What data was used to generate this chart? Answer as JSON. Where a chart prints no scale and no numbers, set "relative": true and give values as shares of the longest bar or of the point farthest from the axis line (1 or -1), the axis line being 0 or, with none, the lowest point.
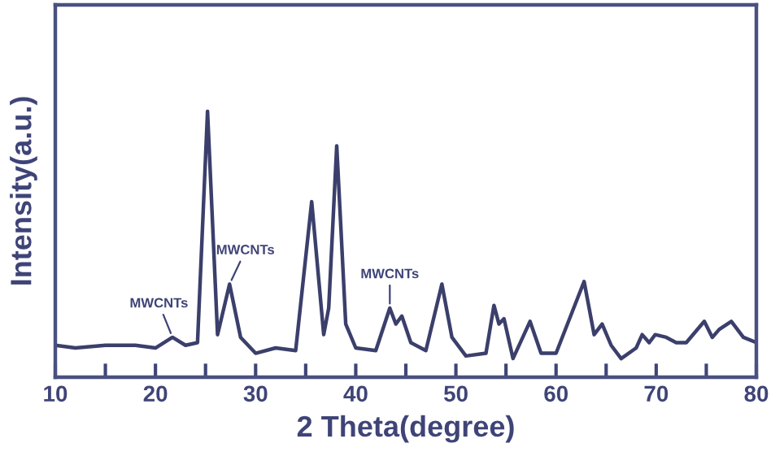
{
  "chart_data": {
    "type": "line",
    "xlabel": "2 Theta(degree)",
    "ylabel": "Intensity(a.u.)",
    "relative": true,
    "tick_labels": "x",
    "grid": false,
    "legend": false,
    "marker": "none",
    "line_style": "solid",
    "xlim": [
      10,
      80
    ],
    "xticks": [
      10,
      {
        "value": 15,
        "label": null
      },
      20,
      {
        "value": 25,
        "label": null
      },
      30,
      {
        "value": 35,
        "label": null
      },
      40,
      {
        "value": 45,
        "label": null
      },
      50,
      {
        "value": 55,
        "label": null
      },
      60,
      {
        "value": 65,
        "label": null
      },
      70,
      {
        "value": 75,
        "label": null
      },
      80
    ],
    "series": [
      {
        "color": "#3b3f6b",
        "x": [
          10,
          12,
          15,
          18,
          20,
          21.7,
          23,
          24.2,
          25.2,
          26.2,
          27.4,
          28.5,
          30,
          32,
          34,
          35.6,
          36.8,
          37.3,
          38.1,
          39,
          40,
          42,
          43.4,
          44.0,
          44.6,
          45.5,
          47,
          48.6,
          49.6,
          51,
          53,
          53.8,
          54.3,
          54.8,
          55.7,
          57.4,
          58.5,
          60,
          62.8,
          63.8,
          64.6,
          65.5,
          66.5,
          68,
          68.6,
          69.3,
          69.9,
          71,
          72,
          73,
          74.8,
          75.6,
          76.3,
          77.5,
          78.7,
          80
        ],
        "values": [
          0.12,
          0.11,
          0.12,
          0.12,
          0.11,
          0.15,
          0.12,
          0.13,
          1.0,
          0.16,
          0.35,
          0.15,
          0.09,
          0.11,
          0.1,
          0.66,
          0.16,
          0.26,
          0.87,
          0.2,
          0.11,
          0.1,
          0.26,
          0.2,
          0.23,
          0.13,
          0.1,
          0.35,
          0.15,
          0.08,
          0.09,
          0.27,
          0.2,
          0.22,
          0.07,
          0.21,
          0.09,
          0.09,
          0.36,
          0.16,
          0.2,
          0.12,
          0.07,
          0.11,
          0.16,
          0.13,
          0.16,
          0.15,
          0.13,
          0.13,
          0.21,
          0.15,
          0.18,
          0.21,
          0.15,
          0.13
        ]
      }
    ],
    "annotations": [
      {
        "text": "MWCNTs",
        "x": 21.7,
        "y": 0.15
      },
      {
        "text": "MWCNTs",
        "x": 27.4,
        "y": 0.35
      },
      {
        "text": "MWCNTs",
        "x": 43.4,
        "y": 0.26
      }
    ]
  }
}
